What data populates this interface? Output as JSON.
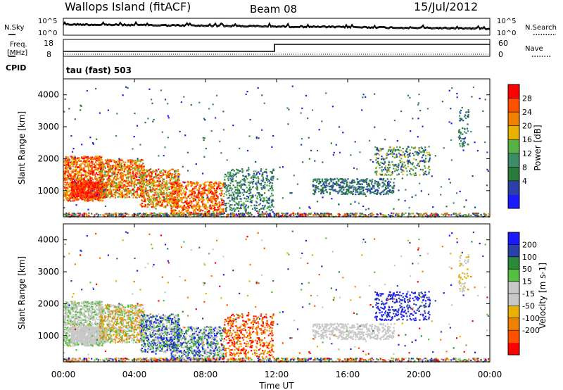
{
  "header": {
    "station": "Wallops Island (fitACF)",
    "beam": "Beam 08",
    "date": "15/Jul/2012"
  },
  "sky_panel": {
    "left_label": "N.Sky",
    "right_label": "N.Search",
    "left_ticks": [
      "10^5",
      "10^0"
    ],
    "right_ticks": [
      "10^5",
      "10^0"
    ]
  },
  "freq_panel": {
    "left_label_1": "Freq.",
    "left_label_2": "[MHz]",
    "right_label": "Nave",
    "left_ticks": [
      "18",
      "8"
    ],
    "right_ticks": [
      "60",
      "0"
    ]
  },
  "cpid": {
    "label": "CPID",
    "value": "tau (fast) 503"
  },
  "colors": {
    "power_scale": [
      "#1a1aff",
      "#2a3fa8",
      "#2a7a3a",
      "#3c8c6a",
      "#55b045",
      "#e8b000",
      "#f08000",
      "#ff5000",
      "#ff0000"
    ],
    "velocity_scale": [
      "#ff0000",
      "#ff5000",
      "#f08000",
      "#e8b000",
      "#c8c8c8",
      "#c8c8c8",
      "#55c040",
      "#2a8a3a",
      "#2a3fa8",
      "#1a1aff"
    ]
  },
  "chart_data": [
    {
      "type": "heatmap",
      "name": "power",
      "ylabel": "Slant Range [km]",
      "xlabel": "",
      "yticks": [
        "4000",
        "3000",
        "2000",
        "1000"
      ],
      "ytick_values": [
        4000,
        3000,
        2000,
        1000
      ],
      "ylim": [
        180,
        4500
      ],
      "xlim_hours": [
        0,
        24
      ],
      "colorbar_label": "Power [dB]",
      "colorbar_ticks": [
        "28",
        "24",
        "20",
        "16",
        "12",
        "8",
        "4"
      ],
      "colorbar_range": [
        0,
        32
      ]
    },
    {
      "type": "heatmap",
      "name": "velocity",
      "ylabel": "Slant Range [km]",
      "xlabel": "Time UT",
      "yticks": [
        "4000",
        "3000",
        "2000",
        "1000"
      ],
      "ytick_values": [
        4000,
        3000,
        2000,
        1000
      ],
      "ylim": [
        180,
        4500
      ],
      "xlim_hours": [
        0,
        24
      ],
      "xticks": [
        "00:00",
        "04:00",
        "08:00",
        "12:00",
        "16:00",
        "20:00",
        "00:00"
      ],
      "xtick_hours": [
        0,
        4,
        8,
        12,
        16,
        20,
        24
      ],
      "colorbar_label": "Velocity [m s-1]",
      "colorbar_ticks": [
        "200",
        "100",
        "50",
        "15",
        "-15",
        "-50",
        "-100",
        "-200"
      ]
    }
  ]
}
